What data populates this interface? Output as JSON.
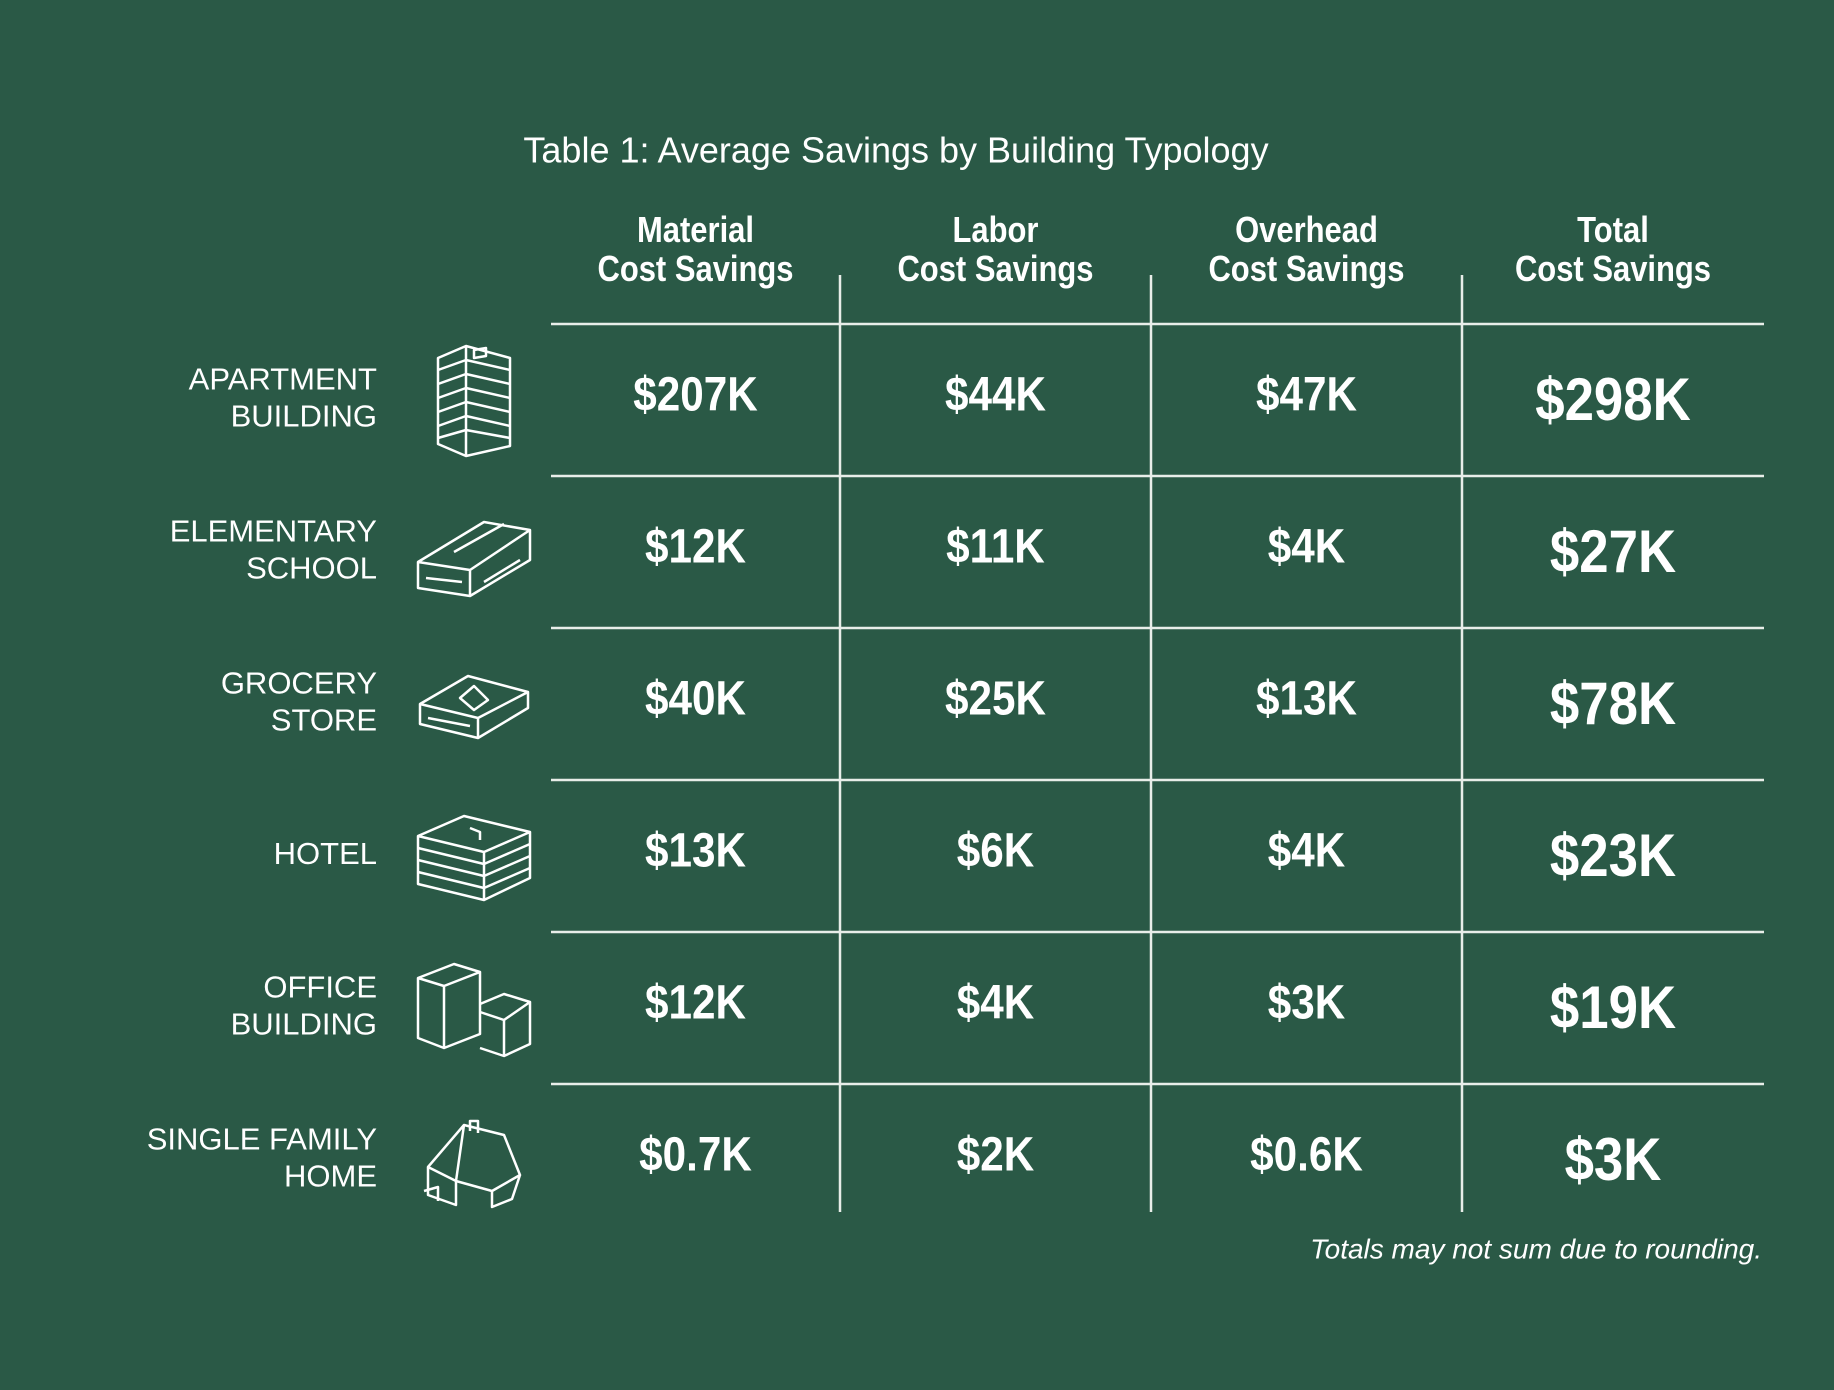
{
  "table": {
    "title": "Table 1: Average Savings by Building Typology",
    "columns": [
      [
        "Material",
        "Cost Savings"
      ],
      [
        "Labor",
        "Cost Savings"
      ],
      [
        "Overhead",
        "Cost Savings"
      ],
      [
        "Total",
        "Cost Savings"
      ]
    ],
    "rows": [
      {
        "label": [
          "APARTMENT",
          "BUILDING"
        ],
        "values": [
          "$207K",
          "$44K",
          "$47K",
          "$298K"
        ]
      },
      {
        "label": [
          "ELEMENTARY",
          "SCHOOL"
        ],
        "values": [
          "$12K",
          "$11K",
          "$4K",
          "$27K"
        ]
      },
      {
        "label": [
          "GROCERY",
          "STORE"
        ],
        "values": [
          "$40K",
          "$25K",
          "$13K",
          "$78K"
        ]
      },
      {
        "label": [
          "HOTEL"
        ],
        "values": [
          "$13K",
          "$6K",
          "$4K",
          "$23K"
        ]
      },
      {
        "label": [
          "OFFICE",
          "BUILDING"
        ],
        "values": [
          "$12K",
          "$4K",
          "$3K",
          "$19K"
        ]
      },
      {
        "label": [
          "SINGLE FAMILY",
          "HOME"
        ],
        "values": [
          "$0.7K",
          "$2K",
          "$0.6K",
          "$3K"
        ]
      }
    ],
    "note": "Totals may not sum due to rounding."
  }
}
